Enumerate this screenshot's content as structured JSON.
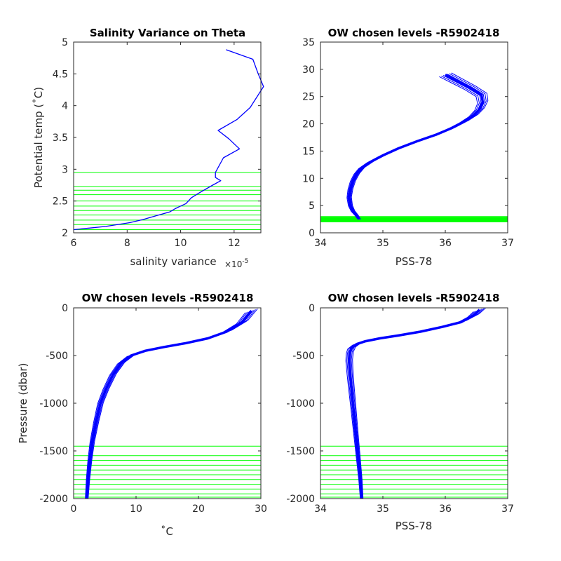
{
  "colors": {
    "data": "#0000ff",
    "levels": "#00ff00",
    "axis": "#262626"
  },
  "chart_data": [
    {
      "id": "p1",
      "type": "line",
      "title": "Salinity Variance on Theta",
      "xlabel": "salinity variance",
      "x_exponent": "×10",
      "x_exponent_power": "-5",
      "ylabel": "Potential temp (˚C)",
      "xlim": [
        6,
        13
      ],
      "ylim": [
        2,
        5
      ],
      "xticks": [
        6,
        8,
        10,
        12
      ],
      "xtick_labels": [
        "6",
        "8",
        "10",
        "12"
      ],
      "yticks": [
        2,
        2.5,
        3,
        3.5,
        4,
        4.5,
        5
      ],
      "ytick_labels": [
        "2",
        "2.5",
        "3",
        "3.5",
        "4",
        "4.5",
        "5"
      ],
      "series": [
        {
          "x": [
            11.7,
            12.7,
            12.9,
            13.1,
            12.6,
            12.1,
            11.4,
            11.8,
            12.2,
            11.6,
            11.3,
            11.3,
            11.5,
            11.2,
            10.7,
            10.4,
            10.2,
            9.8,
            9.6,
            9.1,
            8.6,
            8.1,
            7.2,
            6.0
          ],
          "y": [
            4.88,
            4.73,
            4.5,
            4.3,
            3.97,
            3.78,
            3.61,
            3.48,
            3.32,
            3.18,
            2.95,
            2.87,
            2.82,
            2.75,
            2.63,
            2.55,
            2.46,
            2.38,
            2.33,
            2.27,
            2.21,
            2.16,
            2.1,
            2.05
          ]
        }
      ],
      "hlines": [
        2.95,
        2.73,
        2.67,
        2.6,
        2.5,
        2.42,
        2.35,
        2.28,
        2.2,
        2.13,
        2.05
      ]
    },
    {
      "id": "p2",
      "type": "line",
      "title": "OW chosen levels -R5902418",
      "xlabel": "PSS-78",
      "ylabel": "",
      "xlim": [
        34,
        37
      ],
      "ylim": [
        0,
        35
      ],
      "xticks": [
        34,
        35,
        36,
        37
      ],
      "xtick_labels": [
        "34",
        "35",
        "36",
        "37"
      ],
      "yticks": [
        0,
        5,
        10,
        15,
        20,
        25,
        30,
        35
      ],
      "ytick_labels": [
        "0",
        "5",
        "10",
        "15",
        "20",
        "25",
        "30",
        "35"
      ],
      "series": [
        {
          "x": [
            34.62,
            34.58,
            34.52,
            34.48,
            34.46,
            34.48,
            34.52,
            34.58,
            34.66,
            34.8,
            35.0,
            35.25,
            35.55,
            35.85,
            36.1,
            36.3,
            36.45,
            36.55,
            36.6,
            36.58,
            36.4,
            36.2,
            36.0
          ],
          "y": [
            2.5,
            3.2,
            4.0,
            5.0,
            6.5,
            8.0,
            9.5,
            10.8,
            11.9,
            13.0,
            14.2,
            15.5,
            16.8,
            18.0,
            19.2,
            20.4,
            21.5,
            22.7,
            24.0,
            25.3,
            26.6,
            27.8,
            29.0
          ]
        }
      ],
      "hlines": [
        2.95,
        2.73,
        2.6,
        2.5,
        2.35,
        2.2,
        2.05
      ]
    },
    {
      "id": "p3",
      "type": "line",
      "title": "OW chosen levels -R5902418",
      "xlabel": "˚C",
      "ylabel": "Pressure (dbar)",
      "xlim": [
        0,
        30
      ],
      "ylim": [
        -2000,
        0
      ],
      "xticks": [
        0,
        10,
        20,
        30
      ],
      "xtick_labels": [
        "0",
        "10",
        "20",
        "30"
      ],
      "yticks": [
        -2000,
        -1500,
        -1000,
        -500,
        0
      ],
      "ytick_labels": [
        "-2000",
        "-1500",
        "-1000",
        "-500",
        "0"
      ],
      "series": [
        {
          "x": [
            2.1,
            2.3,
            2.6,
            3.0,
            3.6,
            4.3,
            5.2,
            6.3,
            7.6,
            9.2,
            11.5,
            14.5,
            18.0,
            21.5,
            24.5,
            27.0,
            28.5
          ],
          "y": [
            -2000,
            -1800,
            -1600,
            -1400,
            -1200,
            -1000,
            -850,
            -700,
            -580,
            -500,
            -450,
            -410,
            -370,
            -320,
            -250,
            -150,
            -30
          ]
        }
      ],
      "hlines": [
        -1450,
        -1550,
        -1600,
        -1650,
        -1700,
        -1750,
        -1800,
        -1850,
        -1900,
        -1950,
        -1985
      ]
    },
    {
      "id": "p4",
      "type": "line",
      "title": "OW chosen levels -R5902418",
      "xlabel": "PSS-78",
      "ylabel": "",
      "xlim": [
        34,
        37
      ],
      "ylim": [
        -2000,
        0
      ],
      "xticks": [
        34,
        35,
        36,
        37
      ],
      "xtick_labels": [
        "34",
        "35",
        "36",
        "37"
      ],
      "yticks": [
        -2000,
        -1500,
        -1000,
        -500,
        0
      ],
      "ytick_labels": [
        "-2000",
        "-1500",
        "-1000",
        "-500",
        "0"
      ],
      "series": [
        {
          "x": [
            34.66,
            34.64,
            34.61,
            34.58,
            34.55,
            34.52,
            34.49,
            34.47,
            34.46,
            34.47,
            34.5,
            34.58,
            34.72,
            34.95,
            35.25,
            35.6,
            35.95,
            36.25,
            36.45,
            36.55
          ],
          "y": [
            -2000,
            -1800,
            -1600,
            -1400,
            -1200,
            -1000,
            -800,
            -650,
            -550,
            -470,
            -420,
            -380,
            -350,
            -320,
            -290,
            -250,
            -200,
            -150,
            -80,
            -20
          ]
        }
      ],
      "hlines": [
        -1450,
        -1550,
        -1600,
        -1650,
        -1700,
        -1750,
        -1800,
        -1850,
        -1900,
        -1950,
        -1985
      ]
    }
  ]
}
